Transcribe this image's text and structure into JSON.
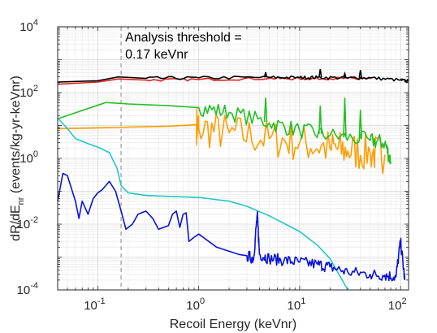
{
  "chart_data": {
    "type": "line",
    "xscale": "log",
    "yscale": "log",
    "xlim": [
      0.04,
      120
    ],
    "ylim": [
      0.0001,
      10000
    ],
    "xlabel": "Recoil Energy (keVnr)",
    "ylabel": {
      "main": "dR/dE",
      "sub": "nr",
      "unit": " (events/kg-yr-keVnr)"
    },
    "grid": {
      "major": true,
      "minor": true
    },
    "x_ticks": [
      {
        "value": 0.1,
        "base": "10",
        "exp": "-1"
      },
      {
        "value": 1,
        "base": "10",
        "exp": "0"
      },
      {
        "value": 10,
        "base": "10",
        "exp": "1"
      },
      {
        "value": 100,
        "base": "10",
        "exp": "2"
      }
    ],
    "y_ticks": [
      {
        "value": 0.0001,
        "base": "10",
        "exp": "-4"
      },
      {
        "value": 0.01,
        "base": "10",
        "exp": "-2"
      },
      {
        "value": 1,
        "base": "10",
        "exp": "0"
      },
      {
        "value": 100,
        "base": "10",
        "exp": "2"
      },
      {
        "value": 10000,
        "base": "10",
        "exp": "4"
      }
    ],
    "threshold": {
      "x": 0.17,
      "line1": "Analysis threshold =",
      "line2": "0.17 keVnr",
      "color": "#999999"
    },
    "series": [
      {
        "color": "#ff9d00",
        "x": [
          0.04,
          0.1,
          0.5,
          0.95,
          1.0,
          2,
          5,
          10,
          20,
          30,
          50,
          70
        ],
        "y": [
          8,
          8.5,
          9.5,
          10.5,
          8.2,
          6,
          4,
          3,
          2,
          1.7,
          1.5,
          1.3
        ],
        "noisy_from": 3,
        "noise": 0.6,
        "label": ""
      },
      {
        "color": "#22c022",
        "x": [
          0.04,
          0.12,
          0.2,
          0.5,
          1,
          2,
          5,
          10,
          20,
          50,
          70,
          80
        ],
        "y": [
          16,
          50,
          45,
          40,
          35,
          25,
          12,
          7,
          5,
          3.5,
          3,
          0.8
        ],
        "noisy_from": 4,
        "noise": 0.25,
        "peaks": [
          [
            4.6,
            70
          ],
          [
            16,
            40
          ],
          [
            28,
            70
          ],
          [
            40,
            30
          ]
        ],
        "label": ""
      },
      {
        "color": "#e02020",
        "x": [
          0.04,
          0.1,
          0.16,
          0.3,
          1,
          5,
          10,
          15,
          30,
          50
        ],
        "y": [
          180,
          210,
          260,
          240,
          250,
          270,
          265,
          270,
          270,
          265
        ],
        "noisy_from": 3,
        "noise": 0.04,
        "label": ""
      },
      {
        "color": "#000000",
        "x": [
          0.04,
          0.1,
          0.16,
          0.3,
          1,
          5,
          10,
          15,
          30,
          50,
          100,
          120
        ],
        "y": [
          210,
          230,
          300,
          270,
          280,
          290,
          285,
          290,
          280,
          280,
          240,
          220
        ],
        "noisy_from": 3,
        "noise": 0.05,
        "peaks": [
          [
            4.6,
            420
          ],
          [
            16,
            520
          ],
          [
            28,
            380
          ],
          [
            40,
            480
          ]
        ],
        "label": ""
      },
      {
        "color": "#20c8c8",
        "x": [
          0.04,
          0.05,
          0.06,
          0.08,
          0.1,
          0.13,
          0.155,
          0.17,
          0.2,
          0.3,
          0.5,
          1,
          2,
          3,
          5,
          10,
          15,
          20,
          30
        ],
        "y": [
          17,
          8,
          4,
          2.8,
          2.2,
          1.5,
          0.5,
          0.15,
          0.09,
          0.075,
          0.07,
          0.065,
          0.05,
          0.035,
          0.018,
          0.006,
          0.0023,
          0.0009,
          0.0001
        ],
        "label": ""
      },
      {
        "color": "#0a14d8",
        "x": [
          0.04,
          0.045,
          0.05,
          0.06,
          0.065,
          0.07,
          0.08,
          0.09,
          0.1,
          0.11,
          0.12,
          0.13,
          0.15,
          0.17,
          0.19,
          0.22,
          0.25,
          0.3,
          0.35,
          0.4,
          0.45,
          0.5,
          0.55,
          0.6,
          0.65,
          0.7,
          0.75,
          0.8,
          0.9,
          1.0,
          1.5,
          2,
          2.5,
          3,
          3.5,
          3.8,
          4,
          5,
          7,
          10,
          15,
          20,
          30,
          50,
          70,
          90,
          100,
          110
        ],
        "y": [
          0.05,
          0.35,
          0.3,
          0.05,
          0.015,
          0.05,
          0.02,
          0.06,
          0.09,
          0.11,
          0.15,
          0.2,
          0.1,
          0.025,
          0.007,
          0.01,
          0.02,
          0.025,
          0.015,
          0.007,
          0.008,
          0.009,
          0.02,
          0.025,
          0.008,
          0.02,
          0.022,
          0.003,
          0.004,
          0.005,
          0.002,
          0.0015,
          0.0012,
          0.0011,
          0.0009,
          0.02,
          0.0012,
          0.0009,
          0.0008,
          0.0007,
          0.0006,
          0.0005,
          0.00035,
          0.0003,
          0.00028,
          0.00025,
          0.003,
          0.0002
        ],
        "noisy_from": 33,
        "noise": 0.18,
        "label": ""
      }
    ]
  }
}
